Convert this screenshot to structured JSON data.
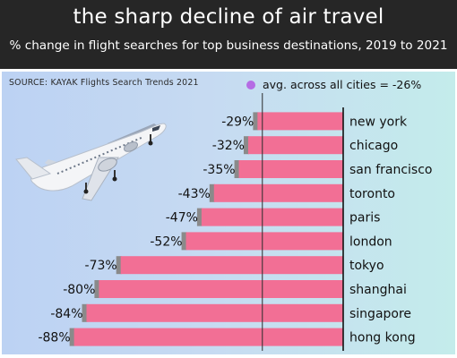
{
  "header": {
    "title": "the sharp decline of air travel",
    "subtitle": "% change in flight searches for top business destinations, 2019 to 2021"
  },
  "source": "SOURCE: KAYAK Flights Search Trends 2021",
  "legend": {
    "label": "avg. across all cities = -26%"
  },
  "colors": {
    "bar": "#f26f95",
    "bar_shadow": "#8a8a8a",
    "avg_dot": "#b56ce4",
    "header_bg": "#262626"
  },
  "chart_data": {
    "type": "bar",
    "orientation": "horizontal",
    "title": "the sharp decline of air travel",
    "subtitle": "% change in flight searches for top business destinations, 2019 to 2021",
    "categories": [
      "new york",
      "chicago",
      "san francisco",
      "toronto",
      "paris",
      "london",
      "tokyo",
      "shanghai",
      "singapore",
      "hong kong"
    ],
    "values": [
      -29,
      -32,
      -35,
      -43,
      -47,
      -52,
      -73,
      -80,
      -84,
      -88
    ],
    "value_labels": [
      "-29%",
      "-32%",
      "-35%",
      "-43%",
      "-47%",
      "-52%",
      "-73%",
      "-80%",
      "-84%",
      "-88%"
    ],
    "reference_line": {
      "value": -26,
      "label": "avg. across all cities = -26%"
    },
    "xlim": [
      -100,
      0
    ]
  }
}
